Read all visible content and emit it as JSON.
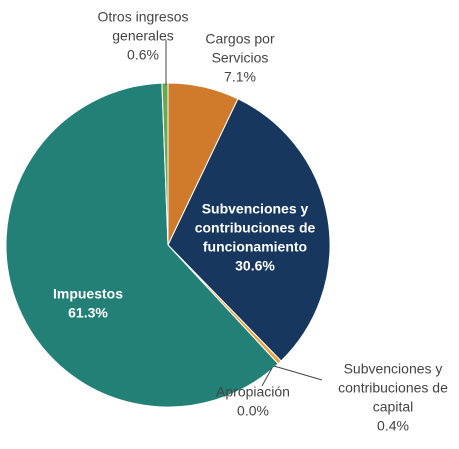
{
  "chart_data": {
    "type": "pie",
    "categories": [
      [
        "Cargos por",
        "Servicios"
      ],
      [
        "Subvenciones y",
        "contribuciones de",
        "funcionamiento"
      ],
      [
        "Subvenciones y",
        "contribuciones de",
        "capital"
      ],
      [
        "Apropiación"
      ],
      [
        "Impuestos"
      ],
      [
        "Otros ingresos",
        "generales"
      ]
    ],
    "values": [
      7.1,
      30.6,
      0.4,
      0.0,
      61.3,
      0.6
    ],
    "value_labels": [
      "7.1%",
      "30.6%",
      "0.4%",
      "0.0%",
      "61.3%",
      "0.6%"
    ],
    "colors": [
      "#d07a2c",
      "#17375e",
      "#e8a33a",
      "#f2c66d",
      "#238076",
      "#6aa84f"
    ]
  }
}
